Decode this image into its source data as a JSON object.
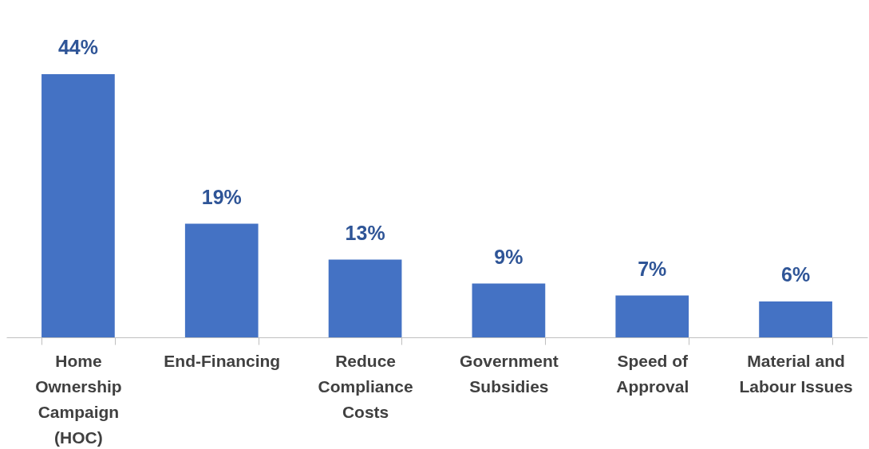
{
  "chart_data": {
    "type": "bar",
    "categories": [
      "Home Ownership Campaign (HOC)",
      "End-Financing",
      "Reduce Compliance Costs",
      "Government Subsidies",
      "Speed of Approval",
      "Material and Labour Issues"
    ],
    "values": [
      44,
      19,
      13,
      9,
      7,
      6
    ],
    "value_labels": [
      "44%",
      "19%",
      "13%",
      "9%",
      "7%",
      "6%"
    ],
    "color": "#4472c4",
    "grid": false
  }
}
